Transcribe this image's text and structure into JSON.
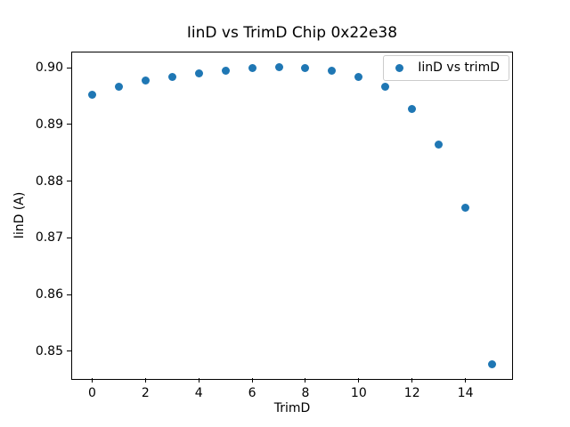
{
  "chart_data": {
    "type": "scatter",
    "title": "IinD vs TrimD Chip 0x22e38",
    "xlabel": "TrimD",
    "ylabel": "IinD (A)",
    "legend_position": "upper right",
    "grid": false,
    "xlim": [
      -0.75,
      15.75
    ],
    "ylim": [
      0.8451,
      0.9027
    ],
    "xticks": [
      0,
      2,
      4,
      6,
      8,
      10,
      12,
      14
    ],
    "yticks": [
      0.85,
      0.86,
      0.87,
      0.88,
      0.89,
      0.9
    ],
    "series": [
      {
        "name": "IinD vs trimD",
        "x": [
          0,
          1,
          2,
          3,
          4,
          5,
          6,
          7,
          8,
          9,
          10,
          11,
          12,
          13,
          14,
          15
        ],
        "y": [
          0.8952,
          0.8967,
          0.8977,
          0.8984,
          0.899,
          0.8995,
          0.8999,
          0.9001,
          0.9,
          0.8995,
          0.8984,
          0.8966,
          0.8927,
          0.8864,
          0.8753,
          0.8477
        ]
      }
    ],
    "marker_color": "#1f77b4"
  },
  "colors": {
    "background": "#ffffff",
    "axes": "#000000",
    "legend_border": "#cccccc"
  }
}
